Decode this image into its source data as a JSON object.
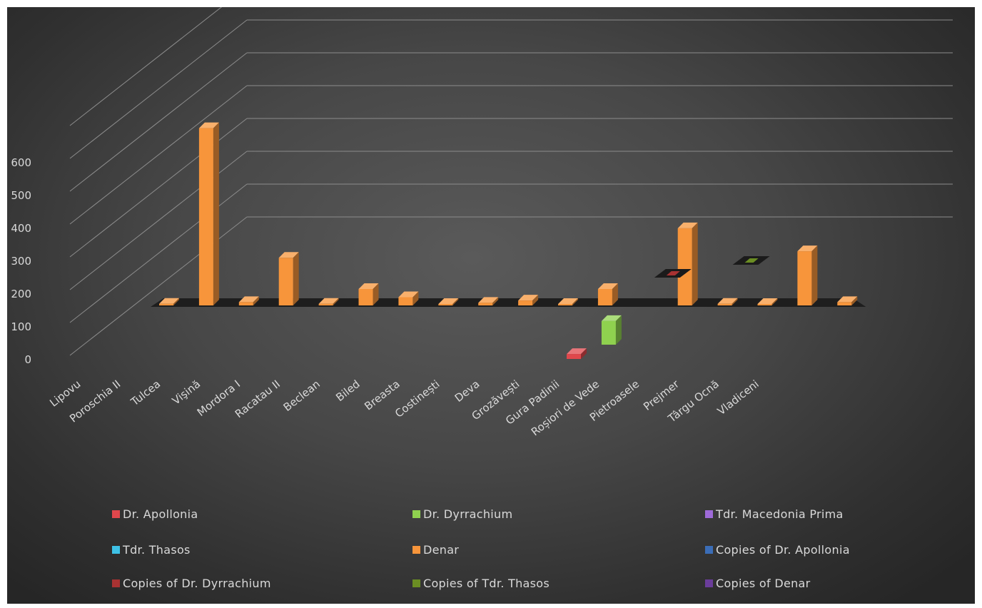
{
  "chart_data": {
    "type": "bar",
    "categories": [
      "Lipovu",
      "Poroschia II",
      "Tulcea",
      "Vişină",
      "Mordora I",
      "Racatau II",
      "Beclean",
      "Biled",
      "Breasta",
      "Costinești",
      "Deva",
      "Grozăvești",
      "Gura Padinii",
      "Roșiori de Vede",
      "Pietroasele",
      "Prejmer",
      "Târgu Ocnă",
      "Vladiceni"
    ],
    "y_ticks": [
      0,
      100,
      200,
      300,
      400,
      500,
      600
    ],
    "ylim": [
      0,
      600
    ],
    "grid": true,
    "legend_position": "bottom",
    "series": [
      {
        "name": "Dr. Apollonia",
        "color": "#e0474c",
        "values": [
          0,
          0,
          0,
          0,
          0,
          0,
          0,
          0,
          0,
          0,
          15,
          0,
          0,
          0,
          0,
          0,
          0,
          0
        ]
      },
      {
        "name": "Dr. Dyrrachium",
        "color": "#8fd14f",
        "values": [
          0,
          0,
          0,
          0,
          0,
          0,
          0,
          0,
          0,
          0,
          0,
          72,
          0,
          0,
          0,
          0,
          0,
          0
        ]
      },
      {
        "name": "Tdr. Macedonia Prima",
        "color": "#9e6ad8",
        "values": [
          0,
          0,
          0,
          0,
          0,
          0,
          0,
          0,
          0,
          0,
          0,
          0,
          0,
          0,
          0,
          0,
          0,
          0
        ]
      },
      {
        "name": "Tdr. Thasos",
        "color": "#3ec1e6",
        "values": [
          0,
          0,
          0,
          0,
          0,
          0,
          0,
          0,
          0,
          0,
          0,
          0,
          0,
          0,
          0,
          0,
          0,
          0
        ]
      },
      {
        "name": "Denar",
        "color": "#f7953b",
        "values": [
          5,
          540,
          10,
          145,
          5,
          50,
          25,
          2,
          8,
          15,
          2,
          50,
          0,
          235,
          5,
          2,
          165,
          10
        ]
      },
      {
        "name": "Copies of Dr. Apollonia",
        "color": "#3b6db7",
        "values": [
          0,
          0,
          0,
          0,
          0,
          0,
          0,
          0,
          0,
          0,
          0,
          0,
          0,
          0,
          0,
          0,
          0,
          0
        ]
      },
      {
        "name": "Copies of Dr. Dyrrachium",
        "color": "#a83232",
        "values": [
          0,
          0,
          0,
          0,
          0,
          0,
          0,
          0,
          0,
          0,
          0,
          0,
          2,
          0,
          0,
          0,
          0,
          0
        ]
      },
      {
        "name": "Copies of Tdr. Thasos",
        "color": "#6b8e23",
        "values": [
          0,
          0,
          0,
          0,
          0,
          0,
          0,
          0,
          0,
          0,
          0,
          0,
          0,
          0,
          2,
          0,
          0,
          0
        ]
      },
      {
        "name": "Copies of  Denar",
        "color": "#6a3d9a",
        "values": [
          0,
          0,
          0,
          0,
          0,
          0,
          0,
          0,
          0,
          0,
          0,
          0,
          0,
          0,
          0,
          0,
          0,
          0
        ]
      }
    ]
  }
}
